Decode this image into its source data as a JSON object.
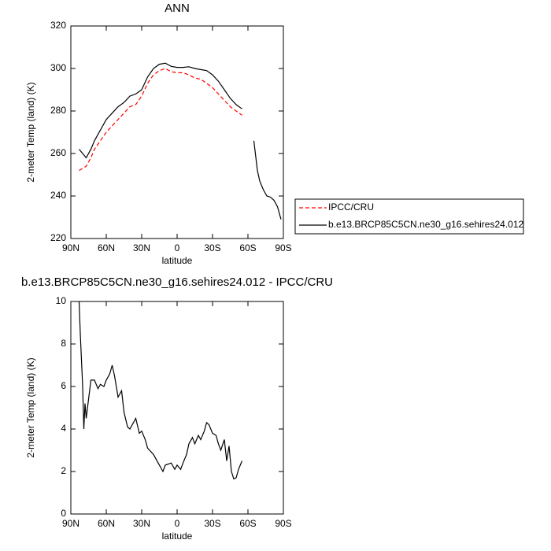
{
  "chart_data": [
    {
      "type": "line",
      "title": "ANN",
      "ylabel": "2-meter Temp (land) (K)",
      "xlabel": "latitude",
      "x": [
        83,
        80,
        77,
        73,
        70,
        65,
        60,
        55,
        50,
        45,
        40,
        35,
        30,
        25,
        20,
        15,
        10,
        5,
        0,
        -5,
        -10,
        -15,
        -20,
        -25,
        -30,
        -35,
        -40,
        -45,
        -50,
        -55,
        -60,
        -65,
        -68,
        -70,
        -73,
        -76,
        -79,
        -82,
        -85,
        -88
      ],
      "series": [
        {
          "name": "IPCC/CRU",
          "color": "#ff0000",
          "line_style": "dashed",
          "values": [
            252,
            253,
            254,
            258,
            262,
            266,
            270,
            273,
            276,
            279,
            282,
            283,
            287,
            293,
            297,
            299,
            300,
            298.5,
            298,
            298,
            297,
            295.5,
            295,
            293,
            291,
            288,
            285,
            282,
            280,
            278,
            null,
            null,
            null,
            null,
            null,
            null,
            null,
            null,
            null,
            null
          ]
        },
        {
          "name": "b.e13.BRCP85C5CN.ne30_g16.sehires24.012",
          "color": "#000000",
          "line_style": "solid",
          "values": [
            262,
            260,
            258,
            262,
            266,
            271,
            276,
            279,
            282,
            284,
            287,
            288,
            290,
            296,
            300,
            302,
            302.5,
            301,
            300.5,
            300.5,
            300.8,
            300,
            299.5,
            299,
            297,
            294,
            290,
            286,
            283,
            281,
            null,
            266,
            252,
            247,
            243,
            240,
            239.5,
            238,
            235,
            229
          ]
        }
      ],
      "xlim": [
        90,
        -90
      ],
      "xticks": [
        {
          "value": 90,
          "label": "90N"
        },
        {
          "value": 60,
          "label": "60N"
        },
        {
          "value": 30,
          "label": "30N"
        },
        0,
        {
          "value": -30,
          "label": "30S"
        },
        {
          "value": -60,
          "label": "60S"
        },
        {
          "value": -90,
          "label": "90S"
        }
      ],
      "ylim": [
        220,
        320
      ],
      "yticks": [
        220,
        240,
        260,
        280,
        300,
        320
      ],
      "legend": "right"
    },
    {
      "type": "line",
      "title": "b.e13.BRCP85C5CN.ne30_g16.sehires24.012 - IPCC/CRU",
      "ylabel": "2-meter Temp (land) (K)",
      "xlabel": "latitude",
      "x": [
        83,
        82,
        80,
        79,
        78,
        77,
        75,
        73,
        70,
        67,
        65,
        62,
        60,
        57,
        55,
        53,
        50,
        47,
        45,
        42,
        40,
        37,
        35,
        32,
        30,
        27,
        25,
        20,
        15,
        12,
        10,
        5,
        2,
        0,
        -3,
        -5,
        -8,
        -10,
        -13,
        -15,
        -18,
        -20,
        -23,
        -25,
        -27,
        -30,
        -33,
        -35,
        -37,
        -40,
        -42,
        -44,
        -46,
        -48,
        -50,
        -52,
        -55
      ],
      "values": [
        10,
        8.5,
        6,
        4,
        5.2,
        4.5,
        5.4,
        6.3,
        6.3,
        5.9,
        6.1,
        6.0,
        6.3,
        6.6,
        7.0,
        6.5,
        5.5,
        5.8,
        4.8,
        4.1,
        4.0,
        4.3,
        4.5,
        3.8,
        3.9,
        3.5,
        3.1,
        2.8,
        2.3,
        2.0,
        2.3,
        2.4,
        2.1,
        2.3,
        2.1,
        2.4,
        2.8,
        3.3,
        3.6,
        3.3,
        3.7,
        3.5,
        3.9,
        4.3,
        4.2,
        3.8,
        3.7,
        3.3,
        3.0,
        3.5,
        2.5,
        3.2,
        2.0,
        1.65,
        1.7,
        2.1,
        2.5
      ],
      "color": "#000000",
      "xlim": [
        90,
        -90
      ],
      "xticks": [
        {
          "value": 90,
          "label": "90N"
        },
        {
          "value": 60,
          "label": "60N"
        },
        {
          "value": 30,
          "label": "30N"
        },
        0,
        {
          "value": -30,
          "label": "30S"
        },
        {
          "value": -60,
          "label": "60S"
        },
        {
          "value": -90,
          "label": "90S"
        }
      ],
      "ylim": [
        0,
        10
      ],
      "yticks": [
        0,
        2,
        4,
        6,
        8,
        10
      ]
    }
  ]
}
